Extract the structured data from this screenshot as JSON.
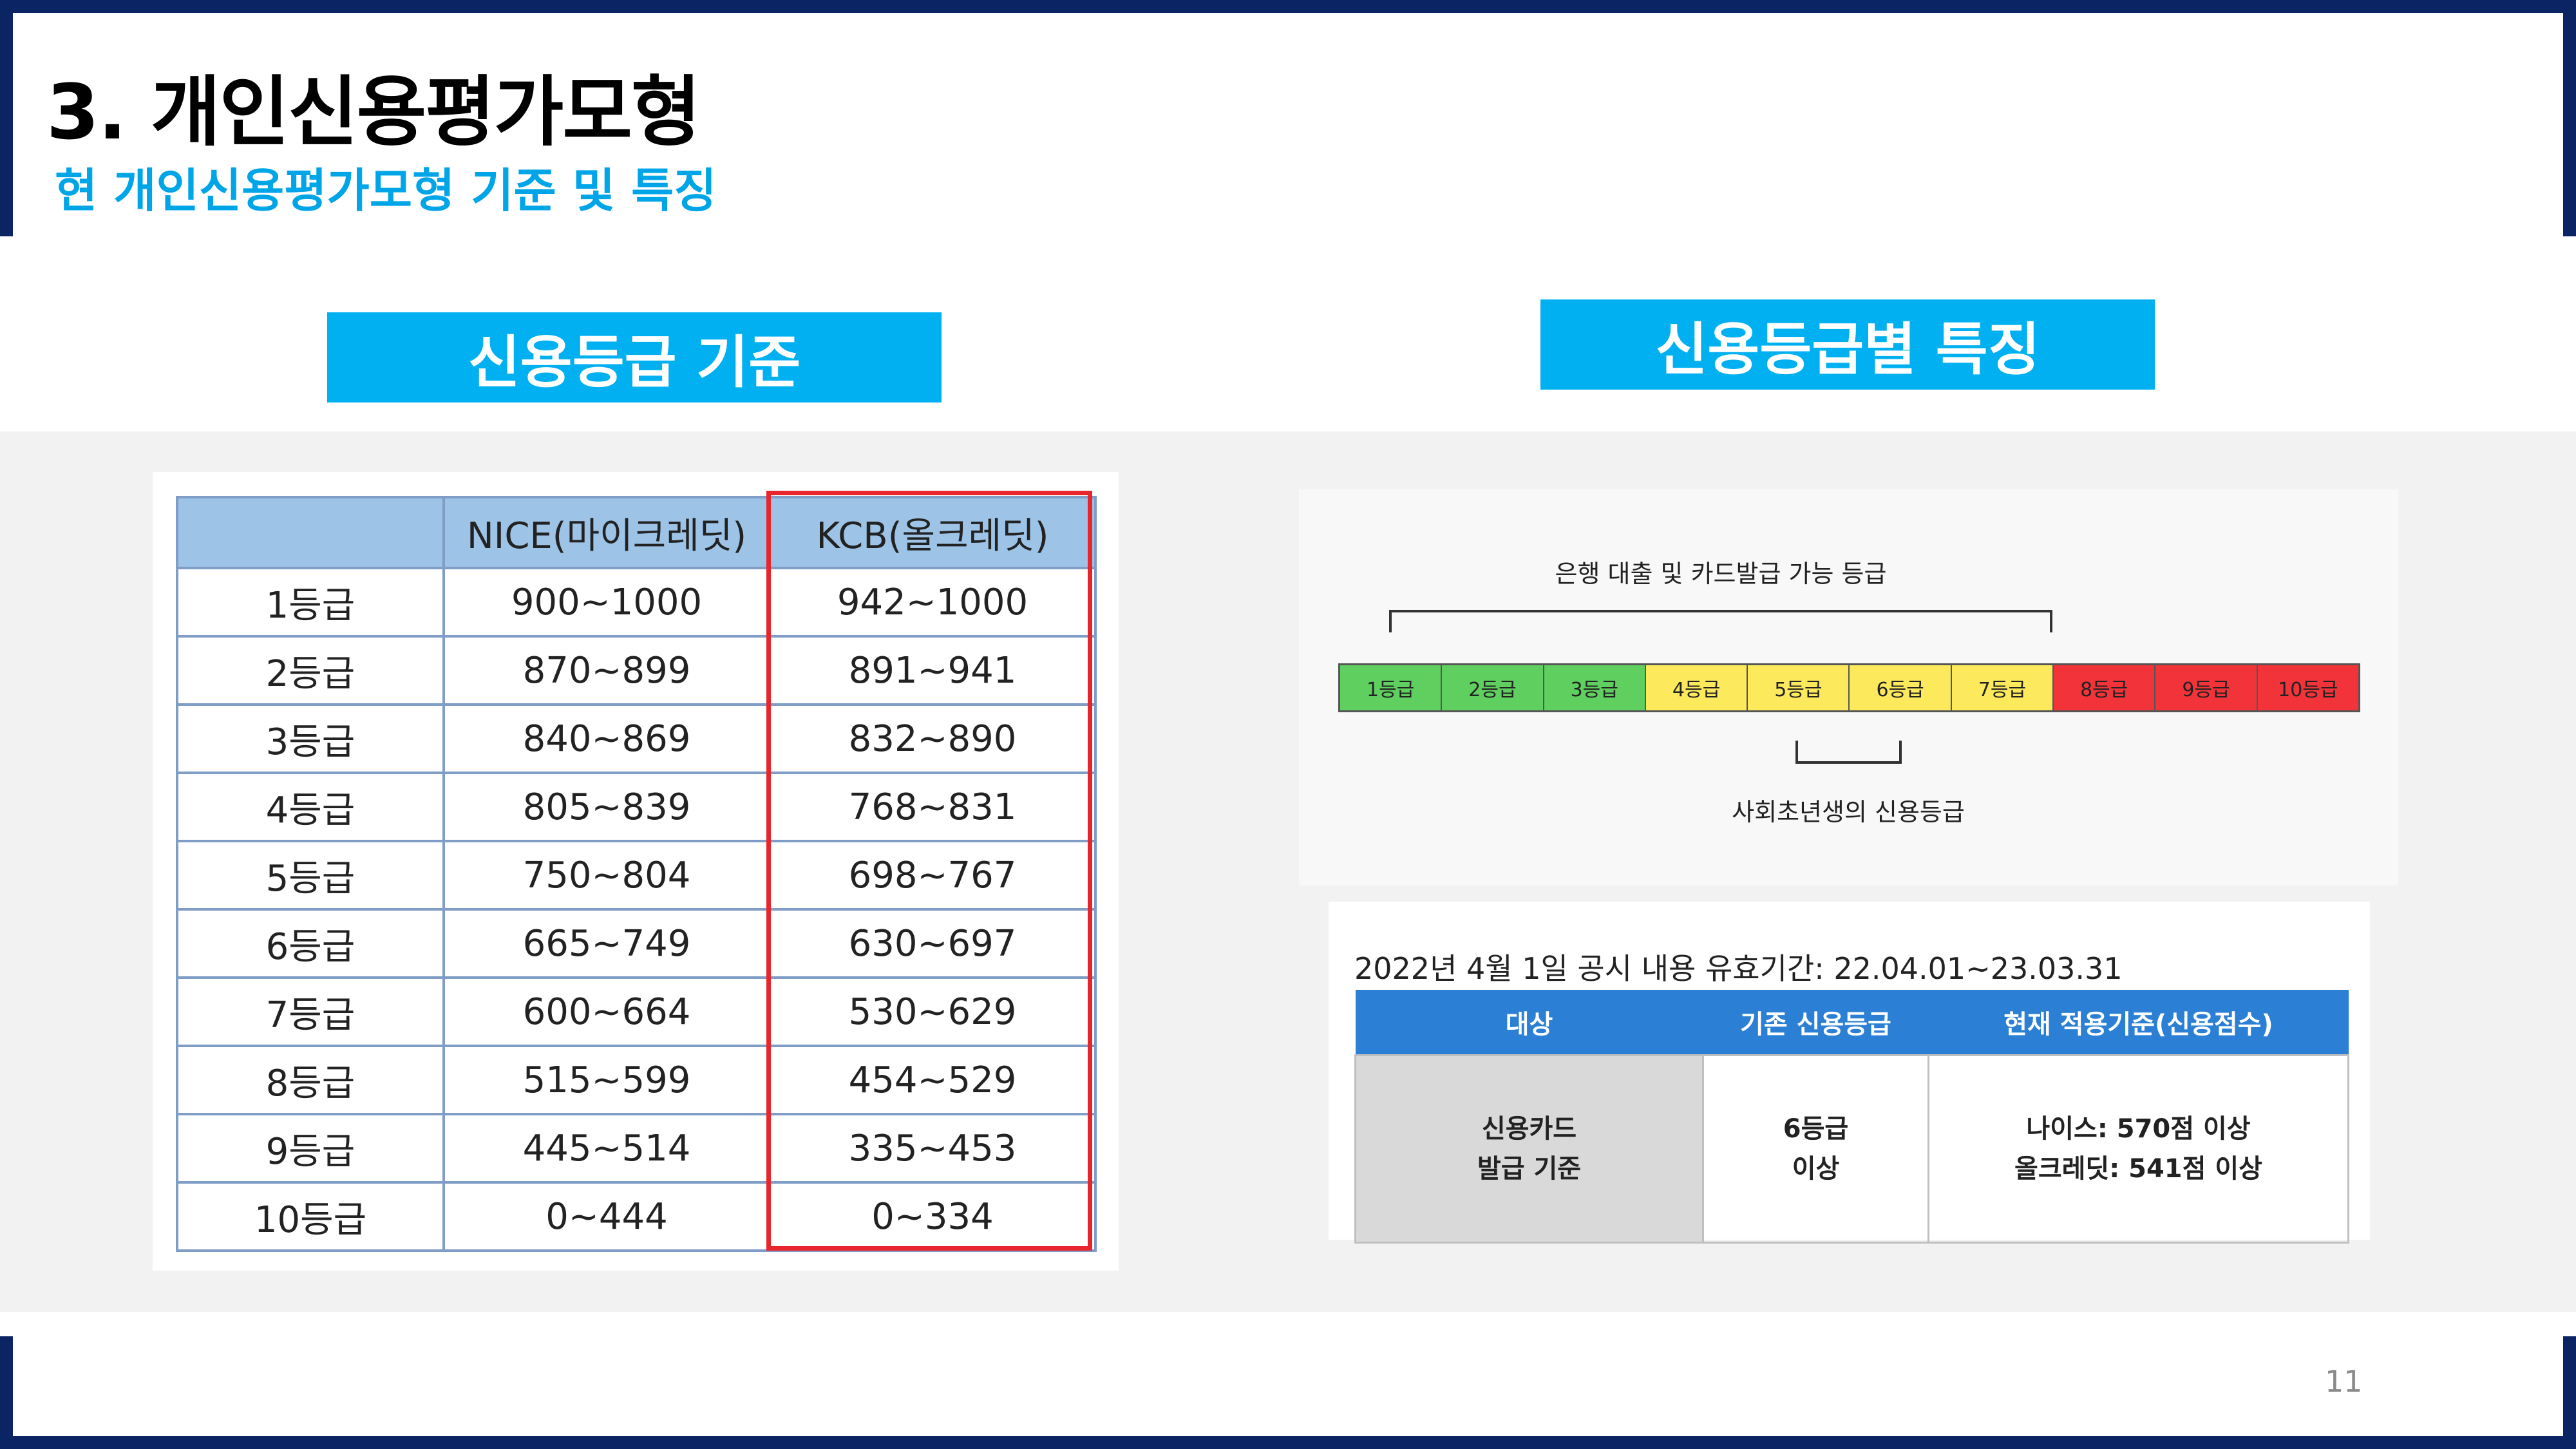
{
  "header": {
    "title": "3. 개인신용평가모형",
    "subtitle": "현 개인신용평가모형 기준 및 특징"
  },
  "left_section": {
    "button_label": "신용등급 기준",
    "table": {
      "columns": [
        "",
        "NICE(마이크레딧)",
        "KCB(올크레딧)"
      ],
      "rows": [
        [
          "1등급",
          "900~1000",
          "942~1000"
        ],
        [
          "2등급",
          "870~899",
          "891~941"
        ],
        [
          "3등급",
          "840~869",
          "832~890"
        ],
        [
          "4등급",
          "805~839",
          "768~831"
        ],
        [
          "5등급",
          "750~804",
          "698~767"
        ],
        [
          "6등급",
          "665~749",
          "630~697"
        ],
        [
          "7등급",
          "600~664",
          "530~629"
        ],
        [
          "8등급",
          "515~599",
          "454~529"
        ],
        [
          "9등급",
          "445~514",
          "335~453"
        ],
        [
          "10등급",
          "0~444",
          "0~334"
        ]
      ]
    }
  },
  "right_section": {
    "button_label": "신용등급별 특징",
    "scale": {
      "top_label": "은행 대출 및 카드발급 가능 등급",
      "bottom_label": "사회초년생의 신용등급",
      "segments": [
        {
          "label": "1등급",
          "color": "#5fcf5f"
        },
        {
          "label": "2등급",
          "color": "#5fcf5f"
        },
        {
          "label": "3등급",
          "color": "#5fcf5f"
        },
        {
          "label": "4등급",
          "color": "#fdea5c"
        },
        {
          "label": "5등급",
          "color": "#fdea5c"
        },
        {
          "label": "6등급",
          "color": "#fdea5c"
        },
        {
          "label": "7등급",
          "color": "#fdea5c"
        },
        {
          "label": "8등급",
          "color": "#f2333a"
        },
        {
          "label": "9등급",
          "color": "#f2333a"
        },
        {
          "label": "10등급",
          "color": "#f2333a"
        }
      ]
    },
    "info": {
      "caption": "2022년 4월 1일 공시 내용 유효기간: 22.04.01~23.03.31",
      "headers": [
        "대상",
        "기존 신용등급",
        "현재 적용기준(신용점수)"
      ],
      "row": {
        "target_line1": "신용카드",
        "target_line2": "발급 기준",
        "grade_line1": "6등급",
        "grade_line2": "이상",
        "score_line1": "나이스: 570점 이상",
        "score_line2": "올크레딧: 541점 이상"
      }
    }
  },
  "footer": {
    "page_number": "11"
  }
}
